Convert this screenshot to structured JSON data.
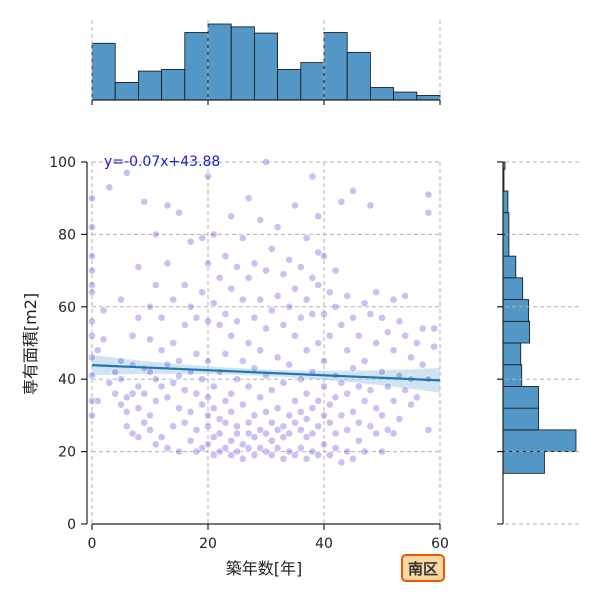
{
  "chart_data": {
    "type": "scatter",
    "xlabel": "築年数[年]",
    "ylabel": "専有面積[m2]",
    "xlim": [
      0,
      60
    ],
    "ylim": [
      0,
      100
    ],
    "xticks": [
      0,
      20,
      40,
      60
    ],
    "yticks": [
      0,
      20,
      40,
      60,
      80,
      100
    ],
    "grid": true,
    "annotation": "y=-0.07x+43.88",
    "badge": "南区",
    "regression": {
      "slope": -0.07,
      "intercept": 43.88,
      "x_range": [
        0,
        60
      ]
    },
    "colors": {
      "points": "#3a3ad4",
      "regression": "#1f77b4",
      "ci_band": "#a9cce3",
      "bars": "#5297c6",
      "badge_bg": "#ffd7a0",
      "badge_border": "#e65c00"
    },
    "top_histogram": {
      "bins": [
        [
          0,
          4
        ],
        [
          4,
          8
        ],
        [
          8,
          12
        ],
        [
          12,
          16
        ],
        [
          16,
          20
        ],
        [
          20,
          24
        ],
        [
          24,
          28
        ],
        [
          28,
          32
        ],
        [
          32,
          36
        ],
        [
          36,
          40
        ],
        [
          40,
          44
        ],
        [
          44,
          48
        ],
        [
          48,
          52
        ],
        [
          52,
          56
        ],
        [
          56,
          60
        ]
      ],
      "counts": [
        100,
        31,
        51,
        54,
        119,
        134,
        129,
        118,
        54,
        66,
        119,
        84,
        22,
        14,
        8
      ],
      "relative_note": "counts normalized to max"
    },
    "right_histogram": {
      "bins": [
        [
          14,
          20
        ],
        [
          20,
          26
        ],
        [
          26,
          32
        ],
        [
          32,
          38
        ],
        [
          38,
          44
        ],
        [
          44,
          50
        ],
        [
          50,
          56
        ],
        [
          56,
          62
        ],
        [
          62,
          68
        ],
        [
          68,
          74
        ],
        [
          74,
          80
        ],
        [
          80,
          86
        ],
        [
          86,
          92
        ],
        [
          92,
          98
        ],
        [
          98,
          100
        ]
      ],
      "counts": [
        42,
        74,
        36,
        36,
        19,
        18,
        27,
        26,
        20,
        13,
        6,
        6,
        5,
        1,
        2
      ]
    },
    "scatter_points": [
      [
        0,
        34
      ],
      [
        0,
        41
      ],
      [
        0,
        46
      ],
      [
        0,
        52
      ],
      [
        0,
        56
      ],
      [
        0,
        64
      ],
      [
        0,
        66
      ],
      [
        0,
        70
      ],
      [
        0,
        74
      ],
      [
        0,
        82
      ],
      [
        0,
        90
      ],
      [
        0,
        30
      ],
      [
        1,
        34
      ],
      [
        1,
        48
      ],
      [
        2,
        51
      ],
      [
        2,
        59
      ],
      [
        3,
        39
      ],
      [
        3,
        93
      ],
      [
        4,
        42
      ],
      [
        4,
        36
      ],
      [
        5,
        33
      ],
      [
        5,
        40
      ],
      [
        5,
        62
      ],
      [
        5,
        45
      ],
      [
        6,
        31
      ],
      [
        6,
        35
      ],
      [
        6,
        27
      ],
      [
        6,
        97
      ],
      [
        7,
        25
      ],
      [
        7,
        36
      ],
      [
        7,
        52
      ],
      [
        7,
        44
      ],
      [
        8,
        32
      ],
      [
        8,
        24
      ],
      [
        8,
        38
      ],
      [
        8,
        57
      ],
      [
        8,
        71
      ],
      [
        9,
        43
      ],
      [
        9,
        28
      ],
      [
        9,
        36
      ],
      [
        9,
        89
      ],
      [
        10,
        42
      ],
      [
        10,
        30
      ],
      [
        10,
        26
      ],
      [
        10,
        51
      ],
      [
        10,
        60
      ],
      [
        11,
        40
      ],
      [
        11,
        22
      ],
      [
        11,
        34
      ],
      [
        11,
        66
      ],
      [
        11,
        80
      ],
      [
        12,
        38
      ],
      [
        12,
        24
      ],
      [
        12,
        48
      ],
      [
        12,
        57
      ],
      [
        13,
        44
      ],
      [
        13,
        21
      ],
      [
        13,
        35
      ],
      [
        13,
        72
      ],
      [
        13,
        88
      ],
      [
        14,
        39
      ],
      [
        14,
        27
      ],
      [
        14,
        50
      ],
      [
        14,
        62
      ],
      [
        15,
        41
      ],
      [
        15,
        32
      ],
      [
        15,
        20
      ],
      [
        15,
        45
      ],
      [
        15,
        86
      ],
      [
        16,
        37
      ],
      [
        16,
        28
      ],
      [
        16,
        55
      ],
      [
        16,
        66
      ],
      [
        17,
        42
      ],
      [
        17,
        23
      ],
      [
        17,
        31
      ],
      [
        17,
        60
      ],
      [
        17,
        78
      ],
      [
        18,
        36
      ],
      [
        18,
        26
      ],
      [
        18,
        20
      ],
      [
        18,
        47
      ],
      [
        18,
        57
      ],
      [
        19,
        33
      ],
      [
        19,
        21
      ],
      [
        19,
        40
      ],
      [
        19,
        64
      ],
      [
        19,
        79
      ],
      [
        20,
        35
      ],
      [
        20,
        22
      ],
      [
        20,
        27
      ],
      [
        20,
        30
      ],
      [
        20,
        45
      ],
      [
        20,
        56
      ],
      [
        20,
        72
      ],
      [
        20,
        96
      ],
      [
        21,
        38
      ],
      [
        21,
        19
      ],
      [
        21,
        24
      ],
      [
        21,
        32
      ],
      [
        21,
        61
      ],
      [
        21,
        80
      ],
      [
        22,
        29
      ],
      [
        22,
        20
      ],
      [
        22,
        25
      ],
      [
        22,
        42
      ],
      [
        22,
        55
      ],
      [
        22,
        68
      ],
      [
        23,
        34
      ],
      [
        23,
        21
      ],
      [
        23,
        28
      ],
      [
        23,
        47
      ],
      [
        23,
        58
      ],
      [
        23,
        74
      ],
      [
        24,
        31
      ],
      [
        24,
        19
      ],
      [
        24,
        23
      ],
      [
        24,
        36
      ],
      [
        24,
        52
      ],
      [
        24,
        65
      ],
      [
        24,
        85
      ],
      [
        25,
        27
      ],
      [
        25,
        20
      ],
      [
        25,
        25
      ],
      [
        25,
        40
      ],
      [
        25,
        56
      ],
      [
        25,
        71
      ],
      [
        26,
        33
      ],
      [
        26,
        18
      ],
      [
        26,
        22
      ],
      [
        26,
        45
      ],
      [
        26,
        62
      ],
      [
        26,
        79
      ],
      [
        27,
        28
      ],
      [
        27,
        21
      ],
      [
        27,
        25
      ],
      [
        27,
        38
      ],
      [
        27,
        50
      ],
      [
        27,
        68
      ],
      [
        27,
        90
      ],
      [
        28,
        30
      ],
      [
        28,
        19
      ],
      [
        28,
        24
      ],
      [
        28,
        43
      ],
      [
        28,
        57
      ],
      [
        28,
        72
      ],
      [
        29,
        26
      ],
      [
        29,
        21
      ],
      [
        29,
        35
      ],
      [
        29,
        48
      ],
      [
        29,
        62
      ],
      [
        29,
        84
      ],
      [
        30,
        31
      ],
      [
        30,
        20
      ],
      [
        30,
        25
      ],
      [
        30,
        41
      ],
      [
        30,
        54
      ],
      [
        30,
        70
      ],
      [
        30,
        100
      ],
      [
        31,
        28
      ],
      [
        31,
        19
      ],
      [
        31,
        23
      ],
      [
        31,
        37
      ],
      [
        31,
        59
      ],
      [
        31,
        76
      ],
      [
        32,
        32
      ],
      [
        32,
        21
      ],
      [
        32,
        26
      ],
      [
        32,
        46
      ],
      [
        32,
        63
      ],
      [
        32,
        82
      ],
      [
        33,
        27
      ],
      [
        33,
        18
      ],
      [
        33,
        24
      ],
      [
        33,
        39
      ],
      [
        33,
        55
      ],
      [
        33,
        69
      ],
      [
        34,
        30
      ],
      [
        34,
        20
      ],
      [
        34,
        25
      ],
      [
        34,
        44
      ],
      [
        34,
        60
      ],
      [
        34,
        73
      ],
      [
        35,
        28
      ],
      [
        35,
        19
      ],
      [
        35,
        34
      ],
      [
        35,
        52
      ],
      [
        35,
        65
      ],
      [
        35,
        88
      ],
      [
        36,
        31
      ],
      [
        36,
        21
      ],
      [
        36,
        26
      ],
      [
        36,
        40
      ],
      [
        36,
        57
      ],
      [
        36,
        71
      ],
      [
        37,
        29
      ],
      [
        37,
        18
      ],
      [
        37,
        24
      ],
      [
        37,
        36
      ],
      [
        37,
        48
      ],
      [
        37,
        62
      ],
      [
        37,
        79
      ],
      [
        38,
        32
      ],
      [
        38,
        20
      ],
      [
        38,
        25
      ],
      [
        38,
        42
      ],
      [
        38,
        58
      ],
      [
        38,
        68
      ],
      [
        38,
        96
      ],
      [
        39,
        27
      ],
      [
        39,
        19
      ],
      [
        39,
        34
      ],
      [
        39,
        50
      ],
      [
        39,
        66
      ],
      [
        39,
        75
      ],
      [
        39,
        85
      ],
      [
        40,
        30
      ],
      [
        40,
        22
      ],
      [
        40,
        38
      ],
      [
        40,
        45
      ],
      [
        40,
        58
      ],
      [
        40,
        74
      ],
      [
        41,
        28
      ],
      [
        41,
        19
      ],
      [
        41,
        33
      ],
      [
        41,
        52
      ],
      [
        41,
        64
      ],
      [
        42,
        35
      ],
      [
        42,
        21
      ],
      [
        42,
        25
      ],
      [
        42,
        41
      ],
      [
        42,
        60
      ],
      [
        42,
        70
      ],
      [
        43,
        30
      ],
      [
        43,
        17
      ],
      [
        43,
        39
      ],
      [
        43,
        55
      ],
      [
        43,
        89
      ],
      [
        44,
        26
      ],
      [
        44,
        20
      ],
      [
        44,
        36
      ],
      [
        44,
        48
      ],
      [
        44,
        63
      ],
      [
        45,
        31
      ],
      [
        45,
        18
      ],
      [
        45,
        43
      ],
      [
        45,
        57
      ],
      [
        45,
        92
      ],
      [
        46,
        28
      ],
      [
        46,
        23
      ],
      [
        46,
        38
      ],
      [
        46,
        52
      ],
      [
        47,
        34
      ],
      [
        47,
        20
      ],
      [
        47,
        45
      ],
      [
        47,
        61
      ],
      [
        48,
        27
      ],
      [
        48,
        37
      ],
      [
        48,
        58
      ],
      [
        48,
        88
      ],
      [
        49,
        32
      ],
      [
        49,
        25
      ],
      [
        49,
        50
      ],
      [
        49,
        64
      ],
      [
        50,
        30
      ],
      [
        50,
        20
      ],
      [
        50,
        42
      ],
      [
        50,
        57
      ],
      [
        51,
        26
      ],
      [
        51,
        38
      ],
      [
        51,
        53
      ],
      [
        52,
        34
      ],
      [
        52,
        25
      ],
      [
        52,
        48
      ],
      [
        52,
        62
      ],
      [
        53,
        29
      ],
      [
        53,
        41
      ],
      [
        53,
        56
      ],
      [
        54,
        37
      ],
      [
        54,
        52
      ],
      [
        54,
        63
      ],
      [
        55,
        40
      ],
      [
        55,
        33
      ],
      [
        55,
        46
      ],
      [
        56,
        35
      ],
      [
        56,
        50
      ],
      [
        57,
        44
      ],
      [
        57,
        54
      ],
      [
        58,
        26
      ],
      [
        58,
        40
      ],
      [
        58,
        86
      ],
      [
        58,
        91
      ],
      [
        59,
        49
      ],
      [
        59,
        54
      ]
    ]
  }
}
